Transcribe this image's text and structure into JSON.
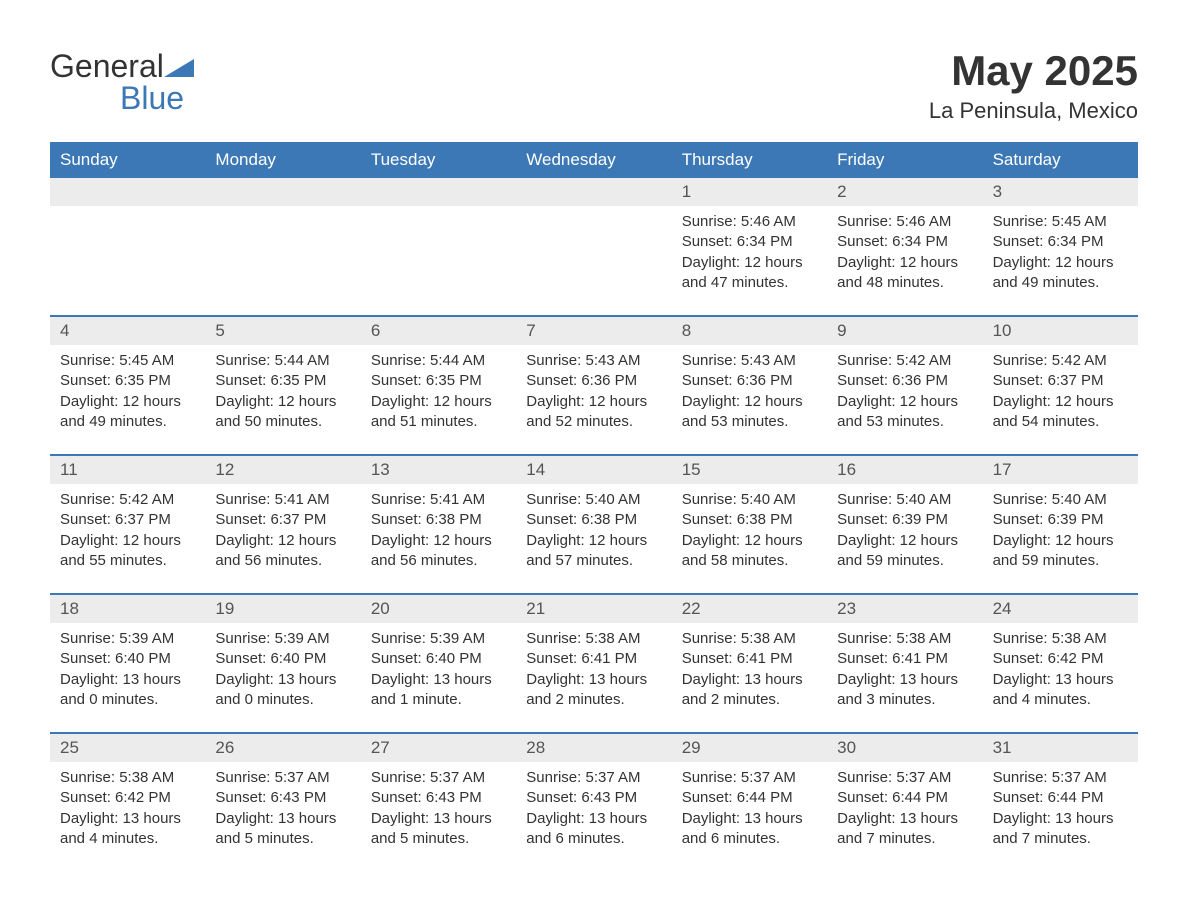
{
  "logo": {
    "text_general": "General",
    "text_blue": "Blue"
  },
  "title": "May 2025",
  "subtitle": "La Peninsula, Mexico",
  "colors": {
    "header_bg": "#3b78b5",
    "header_fg": "#ffffff",
    "daynum_bg": "#ececec",
    "rule": "#3b78b5",
    "text": "#333333"
  },
  "day_headers": [
    "Sunday",
    "Monday",
    "Tuesday",
    "Wednesday",
    "Thursday",
    "Friday",
    "Saturday"
  ],
  "weeks": [
    {
      "nums": [
        "",
        "",
        "",
        "",
        "1",
        "2",
        "3"
      ],
      "cells": [
        null,
        null,
        null,
        null,
        {
          "sunrise": "5:46 AM",
          "sunset": "6:34 PM",
          "daylight": "12 hours and 47 minutes."
        },
        {
          "sunrise": "5:46 AM",
          "sunset": "6:34 PM",
          "daylight": "12 hours and 48 minutes."
        },
        {
          "sunrise": "5:45 AM",
          "sunset": "6:34 PM",
          "daylight": "12 hours and 49 minutes."
        }
      ]
    },
    {
      "nums": [
        "4",
        "5",
        "6",
        "7",
        "8",
        "9",
        "10"
      ],
      "cells": [
        {
          "sunrise": "5:45 AM",
          "sunset": "6:35 PM",
          "daylight": "12 hours and 49 minutes."
        },
        {
          "sunrise": "5:44 AM",
          "sunset": "6:35 PM",
          "daylight": "12 hours and 50 minutes."
        },
        {
          "sunrise": "5:44 AM",
          "sunset": "6:35 PM",
          "daylight": "12 hours and 51 minutes."
        },
        {
          "sunrise": "5:43 AM",
          "sunset": "6:36 PM",
          "daylight": "12 hours and 52 minutes."
        },
        {
          "sunrise": "5:43 AM",
          "sunset": "6:36 PM",
          "daylight": "12 hours and 53 minutes."
        },
        {
          "sunrise": "5:42 AM",
          "sunset": "6:36 PM",
          "daylight": "12 hours and 53 minutes."
        },
        {
          "sunrise": "5:42 AM",
          "sunset": "6:37 PM",
          "daylight": "12 hours and 54 minutes."
        }
      ]
    },
    {
      "nums": [
        "11",
        "12",
        "13",
        "14",
        "15",
        "16",
        "17"
      ],
      "cells": [
        {
          "sunrise": "5:42 AM",
          "sunset": "6:37 PM",
          "daylight": "12 hours and 55 minutes."
        },
        {
          "sunrise": "5:41 AM",
          "sunset": "6:37 PM",
          "daylight": "12 hours and 56 minutes."
        },
        {
          "sunrise": "5:41 AM",
          "sunset": "6:38 PM",
          "daylight": "12 hours and 56 minutes."
        },
        {
          "sunrise": "5:40 AM",
          "sunset": "6:38 PM",
          "daylight": "12 hours and 57 minutes."
        },
        {
          "sunrise": "5:40 AM",
          "sunset": "6:38 PM",
          "daylight": "12 hours and 58 minutes."
        },
        {
          "sunrise": "5:40 AM",
          "sunset": "6:39 PM",
          "daylight": "12 hours and 59 minutes."
        },
        {
          "sunrise": "5:40 AM",
          "sunset": "6:39 PM",
          "daylight": "12 hours and 59 minutes."
        }
      ]
    },
    {
      "nums": [
        "18",
        "19",
        "20",
        "21",
        "22",
        "23",
        "24"
      ],
      "cells": [
        {
          "sunrise": "5:39 AM",
          "sunset": "6:40 PM",
          "daylight": "13 hours and 0 minutes."
        },
        {
          "sunrise": "5:39 AM",
          "sunset": "6:40 PM",
          "daylight": "13 hours and 0 minutes."
        },
        {
          "sunrise": "5:39 AM",
          "sunset": "6:40 PM",
          "daylight": "13 hours and 1 minute."
        },
        {
          "sunrise": "5:38 AM",
          "sunset": "6:41 PM",
          "daylight": "13 hours and 2 minutes."
        },
        {
          "sunrise": "5:38 AM",
          "sunset": "6:41 PM",
          "daylight": "13 hours and 2 minutes."
        },
        {
          "sunrise": "5:38 AM",
          "sunset": "6:41 PM",
          "daylight": "13 hours and 3 minutes."
        },
        {
          "sunrise": "5:38 AM",
          "sunset": "6:42 PM",
          "daylight": "13 hours and 4 minutes."
        }
      ]
    },
    {
      "nums": [
        "25",
        "26",
        "27",
        "28",
        "29",
        "30",
        "31"
      ],
      "cells": [
        {
          "sunrise": "5:38 AM",
          "sunset": "6:42 PM",
          "daylight": "13 hours and 4 minutes."
        },
        {
          "sunrise": "5:37 AM",
          "sunset": "6:43 PM",
          "daylight": "13 hours and 5 minutes."
        },
        {
          "sunrise": "5:37 AM",
          "sunset": "6:43 PM",
          "daylight": "13 hours and 5 minutes."
        },
        {
          "sunrise": "5:37 AM",
          "sunset": "6:43 PM",
          "daylight": "13 hours and 6 minutes."
        },
        {
          "sunrise": "5:37 AM",
          "sunset": "6:44 PM",
          "daylight": "13 hours and 6 minutes."
        },
        {
          "sunrise": "5:37 AM",
          "sunset": "6:44 PM",
          "daylight": "13 hours and 7 minutes."
        },
        {
          "sunrise": "5:37 AM",
          "sunset": "6:44 PM",
          "daylight": "13 hours and 7 minutes."
        }
      ]
    }
  ],
  "labels": {
    "sunrise": "Sunrise: ",
    "sunset": "Sunset: ",
    "daylight": "Daylight: "
  }
}
